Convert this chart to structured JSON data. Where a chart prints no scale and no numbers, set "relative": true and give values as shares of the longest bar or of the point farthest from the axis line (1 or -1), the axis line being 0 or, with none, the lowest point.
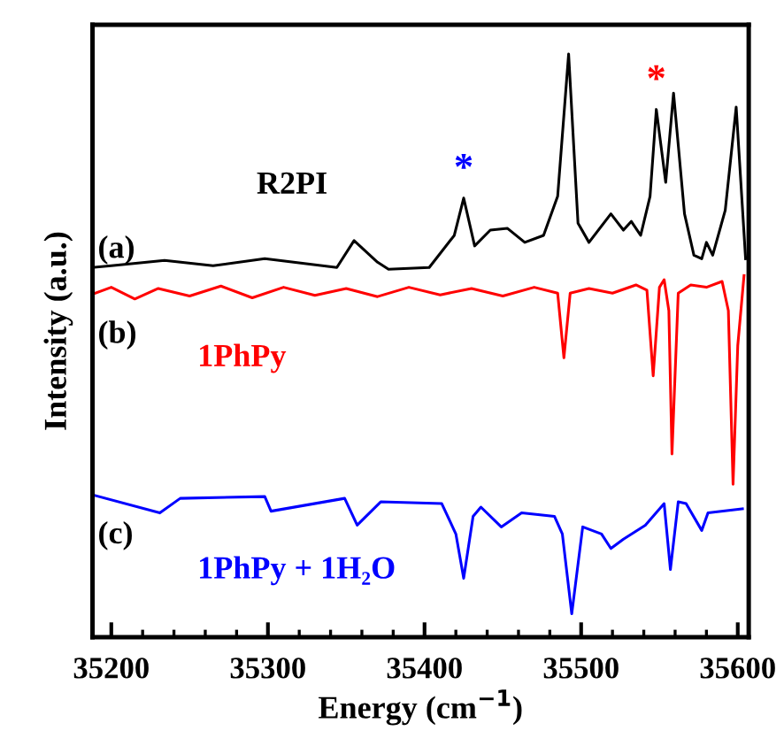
{
  "chart_data": {
    "type": "line",
    "relative": true,
    "xlabel": "Energy (cm$^{−1}$)",
    "ylabel": "Intensity (a.u.)",
    "xlim": [
      35188,
      35607
    ],
    "xticks": [
      35200,
      35300,
      35400,
      35500,
      35600
    ],
    "grid": false,
    "legend": false,
    "tick_labels": "x",
    "marker": "none",
    "line_style": "solid",
    "annotations": [
      "(a)",
      "(b)",
      "(c)",
      {
        "text": "*",
        "x": 35425,
        "y": 0.753
      },
      {
        "text": "*",
        "x": 35548,
        "y": 0.905
      }
    ],
    "series": [
      {
        "name": "R2PI",
        "color": "#000000",
        "x": [
          35188,
          35200,
          35234,
          35265,
          35298,
          35344,
          35355,
          35370,
          35377,
          35403,
          35419,
          35425,
          35432,
          35442,
          35453,
          35464,
          35476,
          35485,
          35492,
          35498,
          35505,
          35519,
          35527,
          35532,
          35538,
          35544,
          35548,
          35554,
          35559,
          35566,
          35572,
          35577,
          35580,
          35584,
          35592,
          35599,
          35605
        ],
        "values": [
          0.634,
          0.637,
          0.646,
          0.637,
          0.649,
          0.634,
          0.68,
          0.643,
          0.631,
          0.634,
          0.689,
          0.753,
          0.671,
          0.698,
          0.701,
          0.677,
          0.689,
          0.756,
          1.0,
          0.71,
          0.677,
          0.726,
          0.698,
          0.713,
          0.689,
          0.756,
          0.905,
          0.78,
          0.933,
          0.726,
          0.655,
          0.649,
          0.677,
          0.655,
          0.732,
          0.909,
          0.649
        ]
      },
      {
        "name": "1PhPy",
        "color": "#ff0000",
        "x": [
          35188,
          35200,
          35215,
          35230,
          35250,
          35270,
          35290,
          35310,
          35330,
          35350,
          35370,
          35390,
          35410,
          35430,
          35450,
          35470,
          35485,
          35489,
          35493,
          35505,
          35520,
          35535,
          35542,
          35546,
          35550,
          35553,
          35556,
          35558,
          35562,
          35570,
          35580,
          35590,
          35594,
          35597,
          35600,
          35604
        ],
        "values": [
          0.588,
          0.6,
          0.58,
          0.598,
          0.585,
          0.602,
          0.582,
          0.6,
          0.586,
          0.598,
          0.584,
          0.6,
          0.587,
          0.598,
          0.585,
          0.6,
          0.59,
          0.479,
          0.59,
          0.598,
          0.59,
          0.604,
          0.595,
          0.448,
          0.6,
          0.613,
          0.56,
          0.314,
          0.59,
          0.604,
          0.6,
          0.61,
          0.56,
          0.262,
          0.5,
          0.62
        ]
      },
      {
        "name": "1PhPy + 1H₂O",
        "color": "#0000ff",
        "x": [
          35188,
          35231,
          35244,
          35298,
          35302,
          35349,
          35357,
          35372,
          35411,
          35420,
          35425,
          35431,
          35436,
          35449,
          35462,
          35483,
          35488,
          35494,
          35501,
          35513,
          35519,
          35527,
          35541,
          35553,
          35557,
          35562,
          35567,
          35577,
          35581,
          35603
        ],
        "values": [
          0.244,
          0.213,
          0.238,
          0.241,
          0.216,
          0.238,
          0.192,
          0.232,
          0.229,
          0.177,
          0.101,
          0.207,
          0.223,
          0.189,
          0.213,
          0.207,
          0.177,
          0.04,
          0.189,
          0.177,
          0.152,
          0.168,
          0.192,
          0.229,
          0.116,
          0.232,
          0.229,
          0.183,
          0.213,
          0.22
        ]
      }
    ]
  }
}
